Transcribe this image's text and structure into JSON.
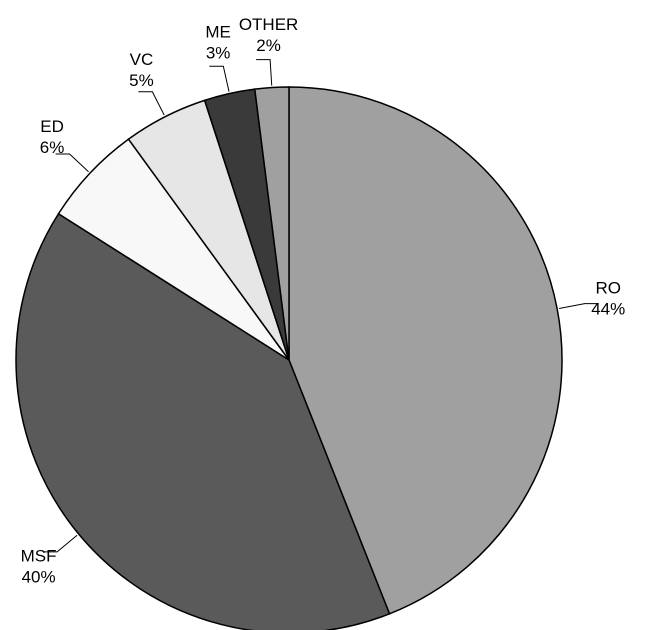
{
  "chart_data": {
    "type": "pie",
    "categories": [
      "RO",
      "MSF",
      "ED",
      "VC",
      "ME",
      "OTHER"
    ],
    "values": [
      44,
      40,
      6,
      5,
      3,
      2
    ],
    "value_labels": [
      "44%",
      "40%",
      "6%",
      "5%",
      "3%",
      "2%"
    ],
    "colors": [
      "#a0a0a0",
      "#5a5a5a",
      "#f8f8f8",
      "#e6e6e6",
      "#3a3a3a",
      "#a0a0a0"
    ]
  }
}
